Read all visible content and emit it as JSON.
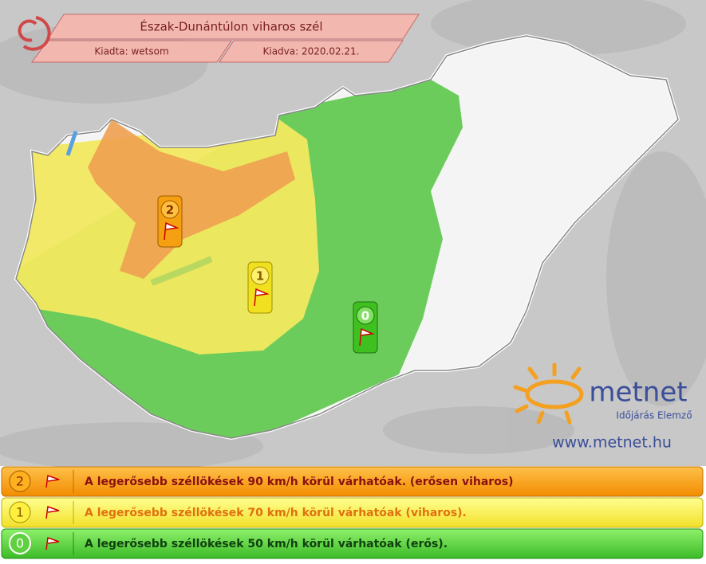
{
  "header": {
    "title": "Észak-Dunántúlon viharos szél",
    "issuer": "Kiadta: wetsom",
    "issued": "Kiadva: 2020.02.21."
  },
  "markers": [
    {
      "level": 2
    },
    {
      "level": 1
    },
    {
      "level": 0
    }
  ],
  "logo": {
    "name": "metnet",
    "tagline": "Időjárás Elemző",
    "url": "www.metnet.hu"
  },
  "legend": [
    {
      "level": 2,
      "text": "A legerősebb széllökések 90 km/h körül várhatóak. (erősen viharos)"
    },
    {
      "level": 1,
      "text": "A legerősebb széllökések 70 km/h körül várhatóak (viharos)."
    },
    {
      "level": 0,
      "text": "A legerősebb széllökések 50 km/h körül várhatóak (erős)."
    }
  ]
}
